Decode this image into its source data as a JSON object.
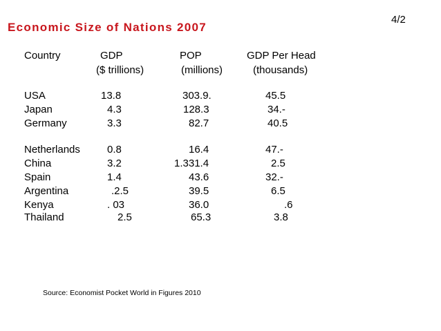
{
  "slide_number": "4/2",
  "title": "Economic Size of Nations  2007",
  "table": {
    "headers": {
      "country": "Country",
      "gdp": "GDP",
      "gdp_unit": "($ trillions)",
      "pop": "POP",
      "pop_unit": "(millions)",
      "gdp_per_head": "GDP Per Head",
      "gdp_per_head_unit": "(thousands)"
    },
    "rows": [
      {
        "country": "USA",
        "gdp": "13.8",
        "pop": "303.9.",
        "gdp_per_head": "45.5"
      },
      {
        "country": "Japan",
        "gdp": "4.3",
        "pop": "128.3",
        "gdp_per_head": "34.-"
      },
      {
        "country": "Germany",
        "gdp": "3.3",
        "pop": "82.7",
        "gdp_per_head": "40.5"
      },
      {
        "country": "Netherlands",
        "gdp": "0.8",
        "pop": "16.4",
        "gdp_per_head": "47.-"
      },
      {
        "country": "China",
        "gdp": "3.2",
        "pop": "1.331.4",
        "gdp_per_head": "2.5"
      },
      {
        "country": "Spain",
        "gdp": "1.4",
        "pop": "43.6",
        "gdp_per_head": "32.-"
      },
      {
        "country": "Argentina",
        "gdp": ".2.5",
        "pop": "39.5",
        "gdp_per_head": "6.5"
      },
      {
        "country": "Kenya",
        "gdp": ". 03",
        "pop": "36.0",
        "gdp_per_head": ".6"
      },
      {
        "country": "Thailand",
        "gdp": "2.5",
        "pop": "65.3",
        "gdp_per_head": "3.8"
      }
    ]
  },
  "source": "Source: Economist Pocket World in Figures 2010"
}
